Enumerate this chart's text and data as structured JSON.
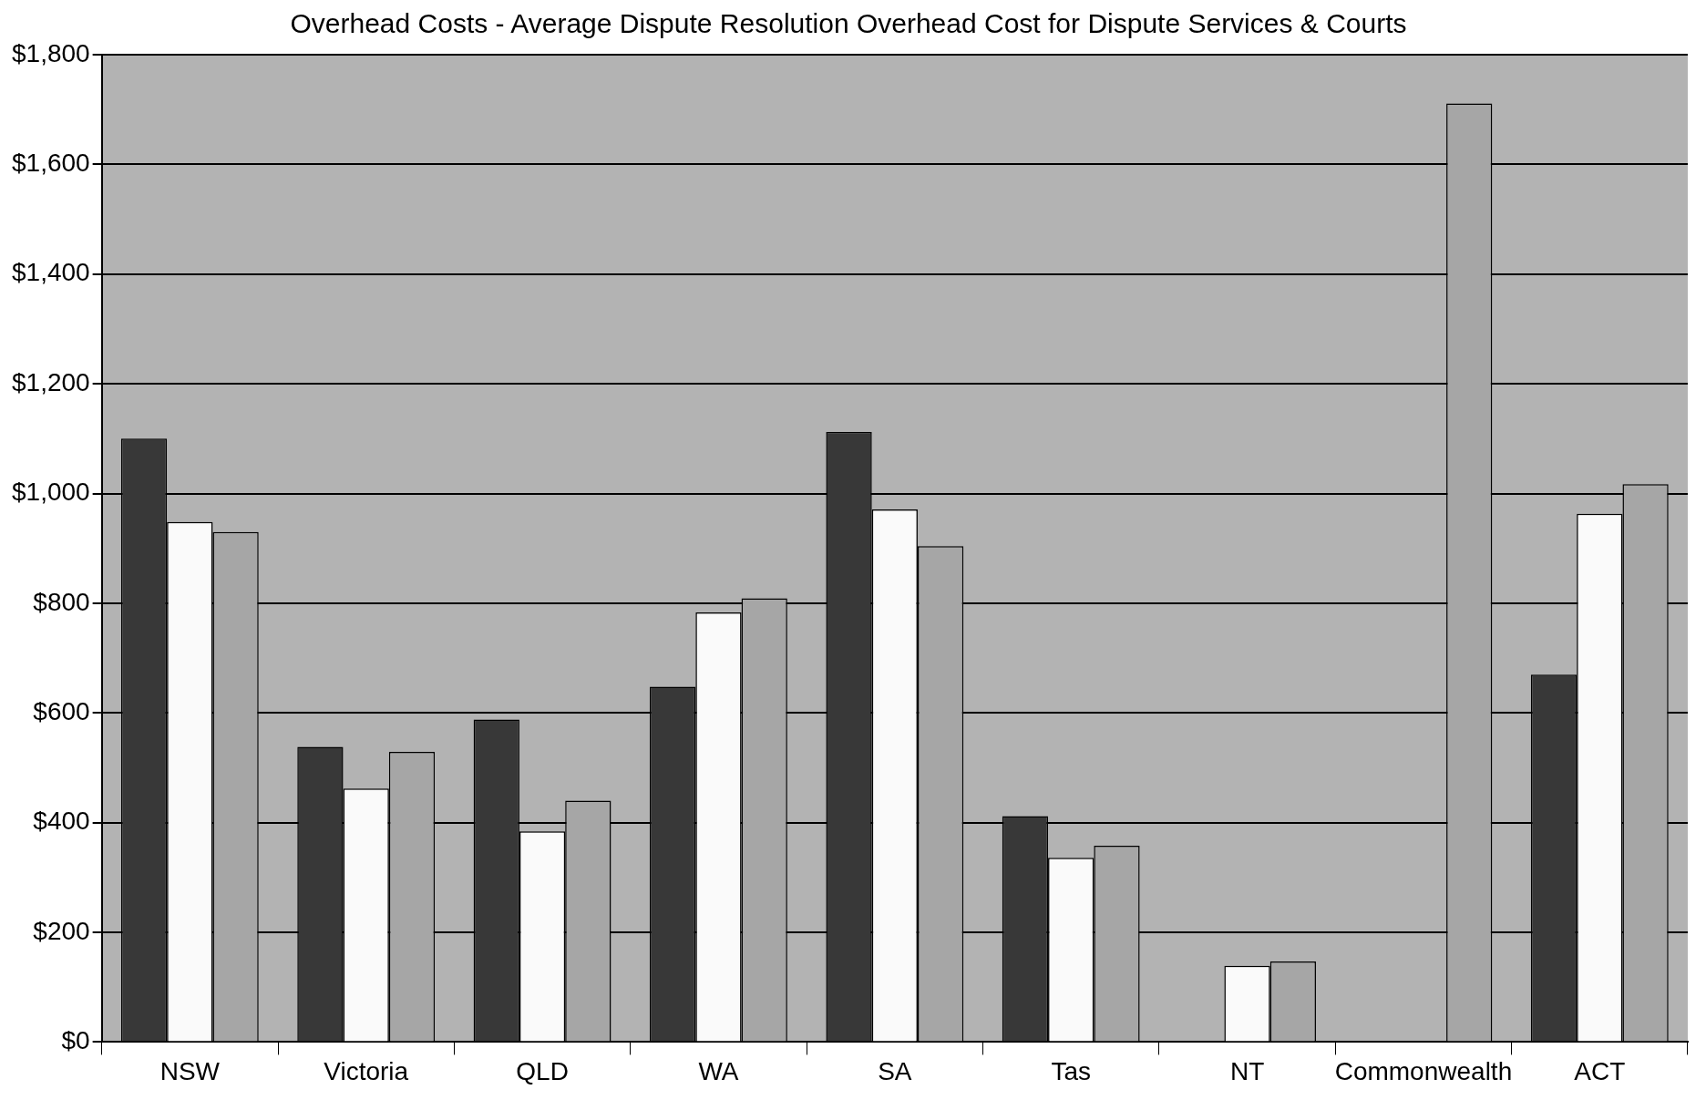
{
  "chart_data": {
    "type": "bar",
    "title": "Overhead Costs - Average Dispute Resolution Overhead Cost for Dispute Services & Courts",
    "categories": [
      "NSW",
      "Victoria",
      "QLD",
      "WA",
      "SA",
      "Tas",
      "NT",
      "Commonwealth",
      "ACT"
    ],
    "series": [
      {
        "color": "#383838",
        "values": [
          1100,
          538,
          588,
          648,
          1112,
          412,
          null,
          null,
          670
        ]
      },
      {
        "color": "#fafafa",
        "values": [
          948,
          462,
          384,
          783,
          971,
          336,
          139,
          null,
          963
        ]
      },
      {
        "color": "#a6a6a6",
        "values": [
          930,
          529,
          440,
          809,
          904,
          358,
          147,
          1711,
          1017
        ]
      }
    ],
    "ylim": [
      0,
      1800
    ],
    "yticks": [
      {
        "value": 0,
        "label": "$0"
      },
      {
        "value": 200,
        "label": "$200"
      },
      {
        "value": 400,
        "label": "$400"
      },
      {
        "value": 600,
        "label": "$600"
      },
      {
        "value": 800,
        "label": "$800"
      },
      {
        "value": 1000,
        "label": "$1,000"
      },
      {
        "value": 1200,
        "label": "$1,200"
      },
      {
        "value": 1400,
        "label": "$1,400"
      },
      {
        "value": 1600,
        "label": "$1,600"
      },
      {
        "value": 1800,
        "label": "$1,800"
      }
    ],
    "grid": "y",
    "legend": false
  }
}
